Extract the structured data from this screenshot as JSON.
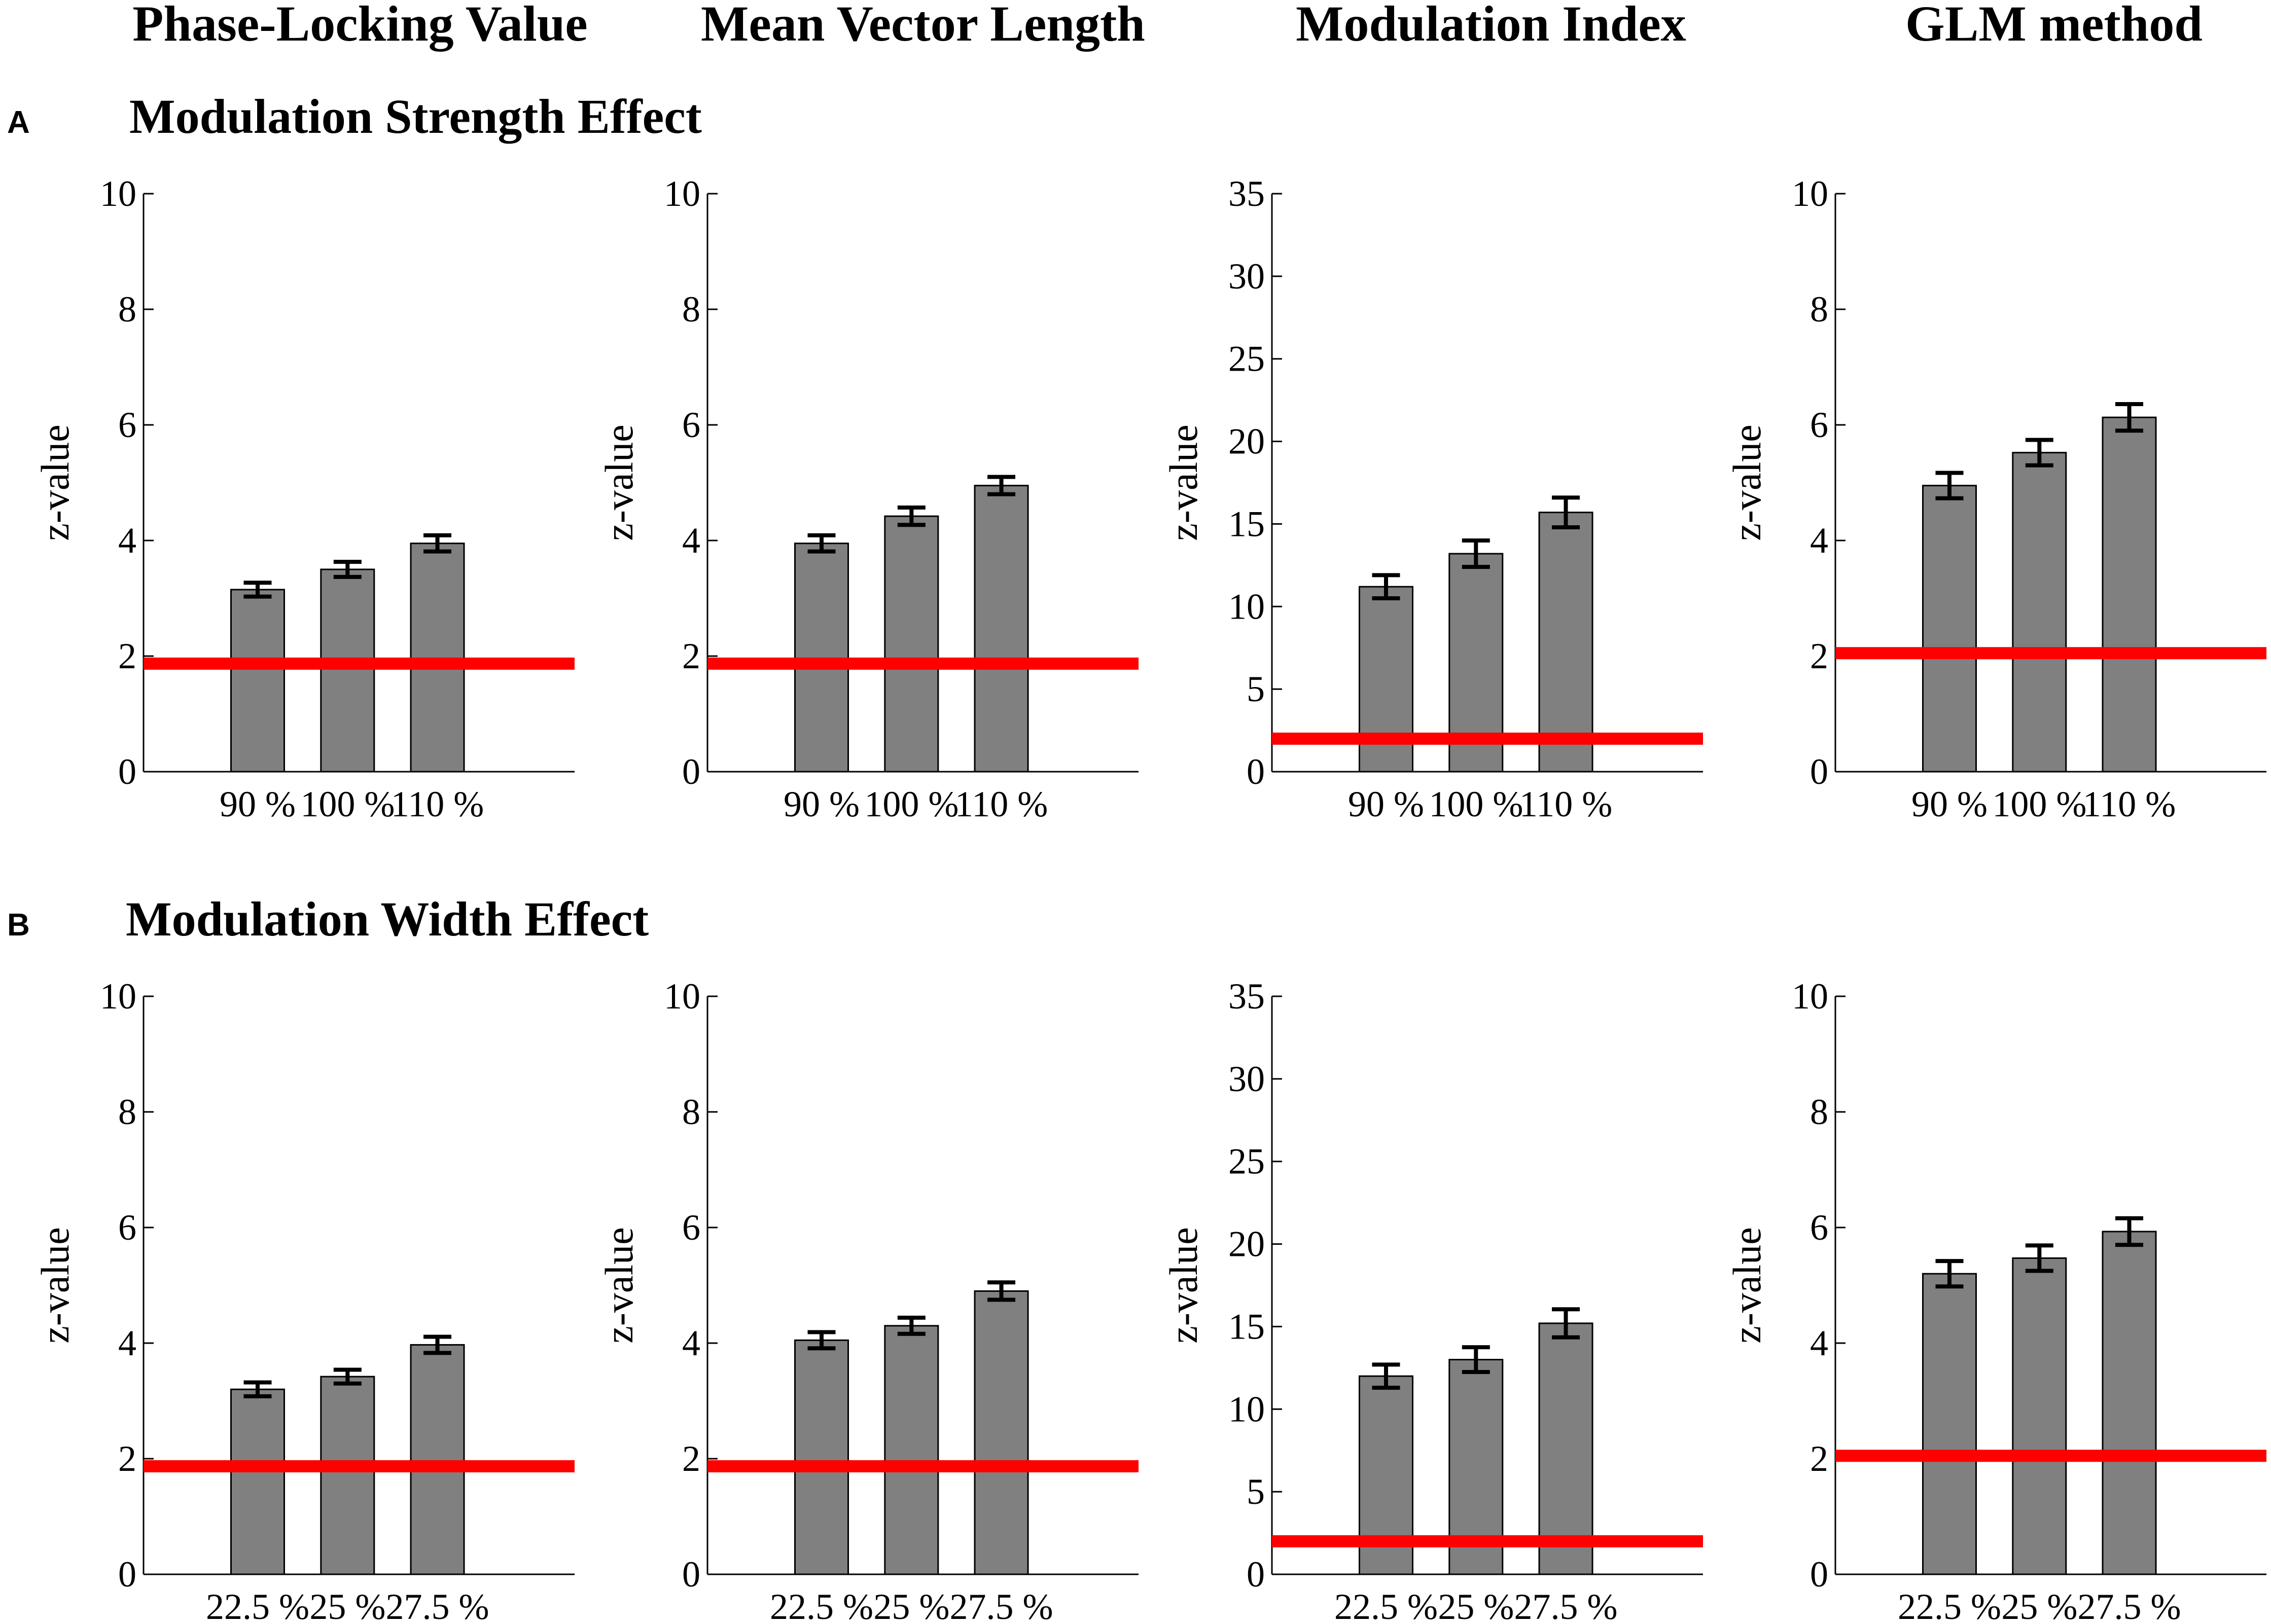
{
  "column_headers": [
    "Phase-Locking Value",
    "Mean Vector Length",
    "Modulation Index",
    "GLM method"
  ],
  "rows": [
    {
      "letter": "A",
      "title": "Modulation Strength Effect"
    },
    {
      "letter": "B",
      "title": "Modulation Width Effect"
    }
  ],
  "colors": {
    "bar": "#808080",
    "threshold": "#ff0000",
    "axis": "#000000"
  },
  "chart_data": [
    {
      "type": "bar",
      "row": 0,
      "col": 0,
      "title": "Phase-Locking Value",
      "ylabel": "z-value",
      "xlabel": "",
      "categories": [
        "90 %",
        "100 %",
        "110 %"
      ],
      "values": [
        3.15,
        3.5,
        3.95
      ],
      "errors": [
        0.12,
        0.13,
        0.14
      ],
      "threshold": 1.87,
      "ylim": [
        0,
        10
      ],
      "yticks": [
        0,
        2,
        4,
        6,
        8,
        10
      ]
    },
    {
      "type": "bar",
      "row": 0,
      "col": 1,
      "title": "Mean Vector Length",
      "ylabel": "z-value",
      "xlabel": "",
      "categories": [
        "90 %",
        "100 %",
        "110 %"
      ],
      "values": [
        3.95,
        4.42,
        4.95
      ],
      "errors": [
        0.14,
        0.15,
        0.15
      ],
      "threshold": 1.87,
      "ylim": [
        0,
        10
      ],
      "yticks": [
        0,
        2,
        4,
        6,
        8,
        10
      ]
    },
    {
      "type": "bar",
      "row": 0,
      "col": 2,
      "title": "Modulation Index",
      "ylabel": "z-value",
      "xlabel": "",
      "categories": [
        "90 %",
        "100 %",
        "110 %"
      ],
      "values": [
        11.2,
        13.2,
        15.7
      ],
      "errors": [
        0.7,
        0.8,
        0.9
      ],
      "threshold": 2.0,
      "ylim": [
        0,
        35
      ],
      "yticks": [
        0,
        5,
        10,
        15,
        20,
        25,
        30,
        35
      ]
    },
    {
      "type": "bar",
      "row": 0,
      "col": 3,
      "title": "GLM method",
      "ylabel": "z-value",
      "xlabel": "",
      "categories": [
        "90 %",
        "100 %",
        "110 %"
      ],
      "values": [
        4.95,
        5.52,
        6.13
      ],
      "errors": [
        0.22,
        0.22,
        0.23
      ],
      "threshold": 2.05,
      "ylim": [
        0,
        10
      ],
      "yticks": [
        0,
        2,
        4,
        6,
        8,
        10
      ]
    },
    {
      "type": "bar",
      "row": 1,
      "col": 0,
      "title": "Phase-Locking Value",
      "ylabel": "z-value",
      "xlabel": "",
      "categories": [
        "22.5 %",
        "25 %",
        "27.5 %"
      ],
      "values": [
        3.2,
        3.42,
        3.97
      ],
      "errors": [
        0.12,
        0.12,
        0.14
      ],
      "threshold": 1.87,
      "ylim": [
        0,
        10
      ],
      "yticks": [
        0,
        2,
        4,
        6,
        8,
        10
      ]
    },
    {
      "type": "bar",
      "row": 1,
      "col": 1,
      "title": "Mean Vector Length",
      "ylabel": "z-value",
      "xlabel": "",
      "categories": [
        "22.5 %",
        "25 %",
        "27.5 %"
      ],
      "values": [
        4.05,
        4.3,
        4.9
      ],
      "errors": [
        0.14,
        0.14,
        0.15
      ],
      "threshold": 1.87,
      "ylim": [
        0,
        10
      ],
      "yticks": [
        0,
        2,
        4,
        6,
        8,
        10
      ]
    },
    {
      "type": "bar",
      "row": 1,
      "col": 2,
      "title": "Modulation Index",
      "ylabel": "z-value",
      "xlabel": "",
      "categories": [
        "22.5 %",
        "25 %",
        "27.5 %"
      ],
      "values": [
        12.0,
        13.0,
        15.2
      ],
      "errors": [
        0.7,
        0.75,
        0.85
      ],
      "threshold": 2.0,
      "ylim": [
        0,
        35
      ],
      "yticks": [
        0,
        5,
        10,
        15,
        20,
        25,
        30,
        35
      ]
    },
    {
      "type": "bar",
      "row": 1,
      "col": 3,
      "title": "GLM method",
      "ylabel": "z-value",
      "xlabel": "",
      "categories": [
        "22.5 %",
        "25 %",
        "27.5 %"
      ],
      "values": [
        5.2,
        5.47,
        5.93
      ],
      "errors": [
        0.22,
        0.22,
        0.23
      ],
      "threshold": 2.05,
      "ylim": [
        0,
        10
      ],
      "yticks": [
        0,
        2,
        4,
        6,
        8,
        10
      ]
    }
  ]
}
